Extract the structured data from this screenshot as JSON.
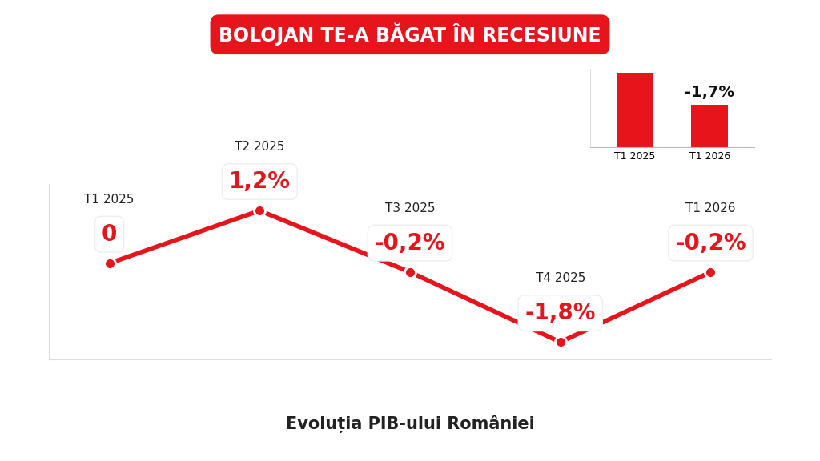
{
  "title": "BOLOJAN TE-A BĂGAT ÎN RECESIUNE",
  "subtitle": "Evoluția PIB-ului României",
  "chart_data": [
    {
      "type": "line",
      "categories": [
        "T1 2025",
        "T2 2025",
        "T3 2025",
        "T4 2025",
        "T1 2026"
      ],
      "values": [
        0,
        1.2,
        -0.2,
        -1.8,
        -0.2
      ],
      "value_labels": [
        "0",
        "1,2%",
        "-0,2%",
        "-1,8%",
        "-0,2%"
      ],
      "data_labels": true,
      "color": "#e8141c",
      "marker": "o",
      "line_style": "solid",
      "ylim": [
        -2.2,
        1.8
      ],
      "grid": false,
      "tick_labels": false
    },
    {
      "type": "bar",
      "categories": [
        "T1 2025",
        "T1 2026"
      ],
      "values": [
        100,
        98.3
      ],
      "annotation": "-1,7%",
      "color": "#e8141c",
      "ylim": [
        96,
        100.2
      ],
      "grid": false,
      "tick_labels": "x"
    }
  ]
}
